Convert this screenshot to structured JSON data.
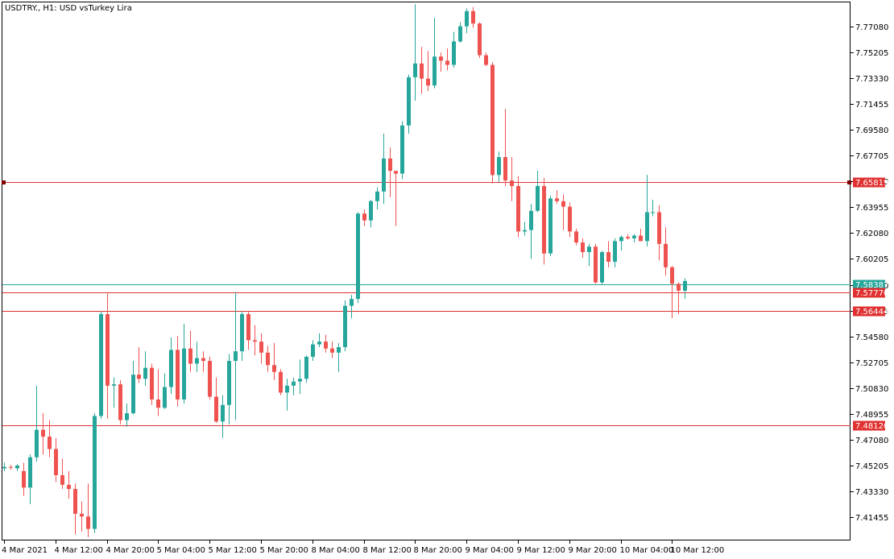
{
  "chart_data": {
    "type": "candlestick",
    "title": "USDTRY., H1:  USD vsTurkey Lira",
    "ylim": [
      7.3985,
      7.7885
    ],
    "y_ticks": [
      "7.77080",
      "7.75205",
      "7.73330",
      "7.71455",
      "7.69580",
      "7.67705",
      "7.65830",
      "7.63955",
      "7.62080",
      "7.60205",
      "7.58330",
      "7.56455",
      "7.54580",
      "7.52705",
      "7.50830",
      "7.48955",
      "7.47080",
      "7.45205",
      "7.43330",
      "7.41455"
    ],
    "x_ticks": [
      "4 Mar 2021",
      "4 Mar 12:00",
      "4 Mar 20:00",
      "5 Mar 04:00",
      "5 Mar 12:00",
      "5 Mar 20:00",
      "8 Mar 04:00",
      "8 Mar 12:00",
      "8 Mar 20:00",
      "9 Mar 04:00",
      "9 Mar 12:00",
      "9 Mar 20:00",
      "10 Mar 04:00",
      "10 Mar 12:00"
    ],
    "horizontal_lines": [
      {
        "price": "7.65819",
        "color": "#e03030",
        "label_bg": "#e03030",
        "handles": true
      },
      {
        "price": "7.58387",
        "color": "#26a69a",
        "label_bg": "#26a69a",
        "handles": false
      },
      {
        "price": "7.57770",
        "color": "#e03030",
        "label_bg": "#e03030",
        "handles": false
      },
      {
        "price": "7.56444",
        "color": "#e03030",
        "label_bg": "#e03030",
        "handles": false
      },
      {
        "price": "7.48120",
        "color": "#e03030",
        "label_bg": "#e03030",
        "handles": false
      }
    ],
    "colors": {
      "bull": "#26a69a",
      "bear": "#ef5350",
      "grid_border": "#000000"
    },
    "candles": [
      [
        7.45,
        7.454,
        7.448,
        7.451
      ],
      [
        7.451,
        7.4525,
        7.449,
        7.4505
      ],
      [
        7.45,
        7.453,
        7.448,
        7.452
      ],
      [
        7.448,
        7.454,
        7.43,
        7.436
      ],
      [
        7.436,
        7.46,
        7.424,
        7.458
      ],
      [
        7.458,
        7.51,
        7.455,
        7.478
      ],
      [
        7.478,
        7.49,
        7.46,
        7.473
      ],
      [
        7.473,
        7.485,
        7.458,
        7.464
      ],
      [
        7.464,
        7.472,
        7.44,
        7.445
      ],
      [
        7.445,
        7.457,
        7.435,
        7.438
      ],
      [
        7.438,
        7.448,
        7.428,
        7.435
      ],
      [
        7.435,
        7.439,
        7.402,
        7.417
      ],
      [
        7.417,
        7.426,
        7.404,
        7.415
      ],
      [
        7.415,
        7.439,
        7.4,
        7.406
      ],
      [
        7.406,
        7.49,
        7.403,
        7.488
      ],
      [
        7.488,
        7.564,
        7.486,
        7.562
      ],
      [
        7.562,
        7.577,
        7.486,
        7.51
      ],
      [
        7.51,
        7.516,
        7.494,
        7.511
      ],
      [
        7.511,
        7.514,
        7.482,
        7.485
      ],
      [
        7.485,
        7.497,
        7.48,
        7.49
      ],
      [
        7.49,
        7.528,
        7.489,
        7.518
      ],
      [
        7.518,
        7.538,
        7.512,
        7.515
      ],
      [
        7.515,
        7.535,
        7.51,
        7.523
      ],
      [
        7.523,
        7.526,
        7.496,
        7.5
      ],
      [
        7.5,
        7.522,
        7.488,
        7.494
      ],
      [
        7.494,
        7.519,
        7.493,
        7.509
      ],
      [
        7.509,
        7.545,
        7.504,
        7.536
      ],
      [
        7.536,
        7.546,
        7.495,
        7.5
      ],
      [
        7.5,
        7.555,
        7.497,
        7.537
      ],
      [
        7.537,
        7.55,
        7.52,
        7.526
      ],
      [
        7.526,
        7.542,
        7.52,
        7.53
      ],
      [
        7.53,
        7.535,
        7.52,
        7.528
      ],
      [
        7.528,
        7.531,
        7.5,
        7.502
      ],
      [
        7.502,
        7.516,
        7.483,
        7.484
      ],
      [
        7.484,
        7.503,
        7.472,
        7.496
      ],
      [
        7.496,
        7.533,
        7.482,
        7.528
      ],
      [
        7.528,
        7.578,
        7.485,
        7.535
      ],
      [
        7.535,
        7.564,
        7.528,
        7.562
      ],
      [
        7.562,
        7.564,
        7.536,
        7.543
      ],
      [
        7.543,
        7.554,
        7.532,
        7.542
      ],
      [
        7.542,
        7.548,
        7.526,
        7.534
      ],
      [
        7.534,
        7.539,
        7.52,
        7.525
      ],
      [
        7.525,
        7.541,
        7.514,
        7.52
      ],
      [
        7.52,
        7.522,
        7.503,
        7.505
      ],
      [
        7.505,
        7.515,
        7.492,
        7.51
      ],
      [
        7.51,
        7.516,
        7.503,
        7.513
      ],
      [
        7.513,
        7.529,
        7.504,
        7.515
      ],
      [
        7.515,
        7.532,
        7.512,
        7.531
      ],
      [
        7.531,
        7.543,
        7.528,
        7.54
      ],
      [
        7.54,
        7.548,
        7.538,
        7.542
      ],
      [
        7.542,
        7.547,
        7.534,
        7.537
      ],
      [
        7.537,
        7.542,
        7.53,
        7.534
      ],
      [
        7.534,
        7.541,
        7.52,
        7.538
      ],
      [
        7.538,
        7.572,
        7.535,
        7.568
      ],
      [
        7.568,
        7.576,
        7.559,
        7.573
      ],
      [
        7.573,
        7.636,
        7.57,
        7.635
      ],
      [
        7.635,
        7.638,
        7.626,
        7.63
      ],
      [
        7.63,
        7.645,
        7.625,
        7.644
      ],
      [
        7.644,
        7.654,
        7.638,
        7.651
      ],
      [
        7.651,
        7.693,
        7.642,
        7.675
      ],
      [
        7.675,
        7.683,
        7.647,
        7.666
      ],
      [
        7.666,
        7.664,
        7.626,
        7.664
      ],
      [
        7.664,
        7.702,
        7.66,
        7.699
      ],
      [
        7.699,
        7.736,
        7.693,
        7.734
      ],
      [
        7.734,
        7.787,
        7.717,
        7.744
      ],
      [
        7.744,
        7.756,
        7.722,
        7.733
      ],
      [
        7.733,
        7.753,
        7.724,
        7.728
      ],
      [
        7.728,
        7.777,
        7.726,
        7.749
      ],
      [
        7.749,
        7.752,
        7.738,
        7.746
      ],
      [
        7.746,
        7.755,
        7.739,
        7.743
      ],
      [
        7.743,
        7.767,
        7.741,
        7.76
      ],
      [
        7.76,
        7.774,
        7.759,
        7.771
      ],
      [
        7.771,
        7.784,
        7.766,
        7.782
      ],
      [
        7.782,
        7.785,
        7.77,
        7.773
      ],
      [
        7.773,
        7.774,
        7.748,
        7.75
      ],
      [
        7.75,
        7.752,
        7.742,
        7.743
      ],
      [
        7.743,
        7.745,
        7.657,
        7.663
      ],
      [
        7.663,
        7.68,
        7.658,
        7.676
      ],
      [
        7.676,
        7.711,
        7.655,
        7.659
      ],
      [
        7.659,
        7.676,
        7.644,
        7.655
      ],
      [
        7.655,
        7.662,
        7.618,
        7.622
      ],
      [
        7.622,
        7.629,
        7.619,
        7.623
      ],
      [
        7.623,
        7.642,
        7.602,
        7.637
      ],
      [
        7.637,
        7.666,
        7.636,
        7.655
      ],
      [
        7.655,
        7.661,
        7.598,
        7.606
      ],
      [
        7.606,
        7.648,
        7.604,
        7.646
      ],
      [
        7.646,
        7.652,
        7.642,
        7.644
      ],
      [
        7.644,
        7.649,
        7.623,
        7.64
      ],
      [
        7.64,
        7.643,
        7.618,
        7.622
      ],
      [
        7.622,
        7.624,
        7.612,
        7.614
      ],
      [
        7.614,
        7.617,
        7.603,
        7.607
      ],
      [
        7.607,
        7.613,
        7.597,
        7.611
      ],
      [
        7.611,
        7.613,
        7.584,
        7.585
      ],
      [
        7.585,
        7.608,
        7.583,
        7.607
      ],
      [
        7.607,
        7.615,
        7.596,
        7.6
      ],
      [
        7.6,
        7.617,
        7.596,
        7.615
      ],
      [
        7.615,
        7.619,
        7.608,
        7.618
      ],
      [
        7.618,
        7.62,
        7.616,
        7.617
      ],
      [
        7.617,
        7.62,
        7.614,
        7.619
      ],
      [
        7.619,
        7.624,
        7.615,
        7.615
      ],
      [
        7.615,
        7.663,
        7.611,
        7.636
      ],
      [
        7.636,
        7.645,
        7.633,
        7.636
      ],
      [
        7.636,
        7.641,
        7.601,
        7.613
      ],
      [
        7.613,
        7.625,
        7.59,
        7.596
      ],
      [
        7.596,
        7.597,
        7.559,
        7.584
      ],
      [
        7.584,
        7.585,
        7.562,
        7.579
      ],
      [
        7.579,
        7.588,
        7.573,
        7.586
      ]
    ]
  }
}
